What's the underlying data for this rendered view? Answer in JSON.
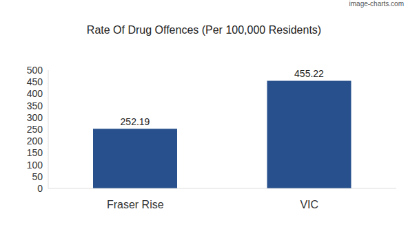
{
  "chart_data": {
    "type": "bar",
    "title": "Rate Of Drug Offences (Per 100,000 Residents)",
    "annotations": [
      "image-charts.com"
    ],
    "categories": [
      "Fraser Rise",
      "VIC"
    ],
    "values": [
      252.19,
      455.22
    ],
    "color": "#27508d",
    "ylim": [
      0,
      500
    ],
    "yticks": [
      0,
      50,
      100,
      150,
      200,
      250,
      300,
      350,
      400,
      450,
      500
    ],
    "grid": false,
    "data_labels": true
  }
}
